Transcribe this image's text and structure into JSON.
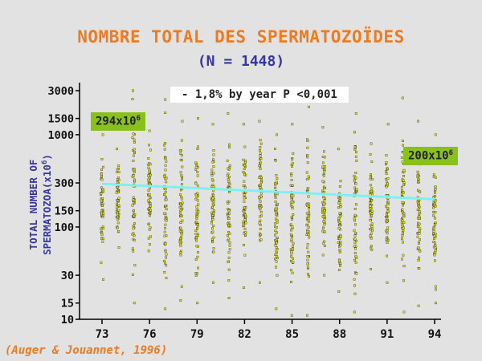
{
  "title": "NOMBRE TOTAL DES SPERMATOZOÏDES",
  "subtitle": "(N = 1448)",
  "source": "(Auger & Jouannet, 1996)",
  "annotations": {
    "trend": "- 1,8% by year    P <0,001",
    "start_base": "294x10",
    "start_exp": "6",
    "end_base": "200x10",
    "end_exp": "6"
  },
  "colors": {
    "background": "#e2e2e2",
    "title": "#f07a1e",
    "subtitle": "#3636a0",
    "points": "#e8e800",
    "trendline": "#7ff0f0",
    "label_box": "#8ac01e"
  },
  "chart_data": {
    "type": "scatter",
    "title": "NOMBRE TOTAL DES SPERMATOZOÏDES",
    "subtitle": "(N = 1448)",
    "ylabel_line1": "TOTAL NUMBER OF",
    "ylabel_line2_base": "SPERMATOZOA(x10",
    "ylabel_line2_exp": "6",
    "ylabel_line2_end": ")",
    "xlabel": "",
    "x_scale": "linear",
    "y_scale": "log",
    "xlim": [
      73,
      94
    ],
    "ylim": [
      10,
      3000
    ],
    "x_ticks": [
      "73",
      "76",
      "79",
      "82",
      "85",
      "88",
      "91",
      "94"
    ],
    "y_ticks": [
      "3000",
      "1500",
      "1000",
      "300",
      "150",
      "100",
      "30",
      "15",
      "10"
    ],
    "grid": false,
    "trendline": {
      "x": [
        73,
        94
      ],
      "y": [
        294,
        200
      ]
    },
    "point_columns": [
      {
        "year": 73,
        "min": 27,
        "max": 1000
      },
      {
        "year": 74,
        "min": 60,
        "max": 700
      },
      {
        "year": 75,
        "min": 15,
        "max": 3000
      },
      {
        "year": 76,
        "min": 55,
        "max": 1100
      },
      {
        "year": 77,
        "min": 13,
        "max": 2400
      },
      {
        "year": 78,
        "min": 16,
        "max": 1400
      },
      {
        "year": 79,
        "min": 15,
        "max": 1500
      },
      {
        "year": 80,
        "min": 25,
        "max": 1300
      },
      {
        "year": 81,
        "min": 17,
        "max": 1700
      },
      {
        "year": 82,
        "min": 22,
        "max": 1300
      },
      {
        "year": 83,
        "min": 25,
        "max": 1400
      },
      {
        "year": 84,
        "min": 13,
        "max": 1000
      },
      {
        "year": 85,
        "min": 11,
        "max": 1300
      },
      {
        "year": 86,
        "min": 11,
        "max": 2000
      },
      {
        "year": 87,
        "min": 30,
        "max": 1200
      },
      {
        "year": 88,
        "min": 20,
        "max": 700
      },
      {
        "year": 89,
        "min": 12,
        "max": 1700
      },
      {
        "year": 90,
        "min": 35,
        "max": 800
      },
      {
        "year": 91,
        "min": 25,
        "max": 1300
      },
      {
        "year": 92,
        "min": 12,
        "max": 2500
      },
      {
        "year": 93,
        "min": 14,
        "max": 1400
      },
      {
        "year": 94,
        "min": 15,
        "max": 1000
      }
    ]
  }
}
